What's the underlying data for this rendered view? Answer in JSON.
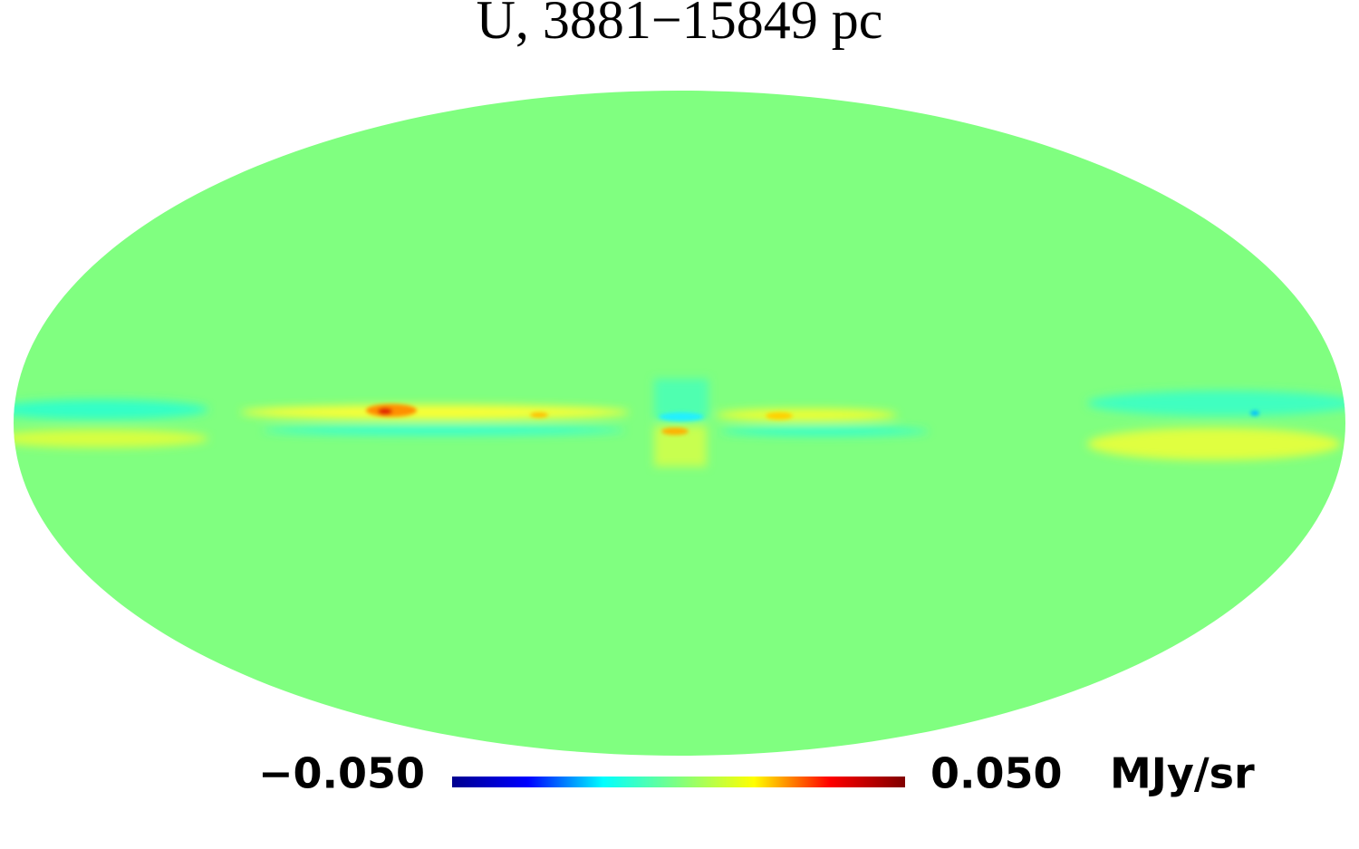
{
  "chart_data": {
    "type": "map",
    "title": "U, 3881−15849 pc",
    "projection": "mollweide",
    "colorbar": {
      "lim": [
        -0.05,
        0.05
      ],
      "ticks": [
        {
          "value": -0.05,
          "label": "−0.050"
        },
        {
          "value": 0.05,
          "label": "0.050"
        }
      ],
      "unit": "MJy/sr",
      "colors": [
        "#00008f",
        "#0000ff",
        "#00ffff",
        "#80ff80",
        "#ffff00",
        "#ff0000",
        "#800000"
      ]
    }
  }
}
